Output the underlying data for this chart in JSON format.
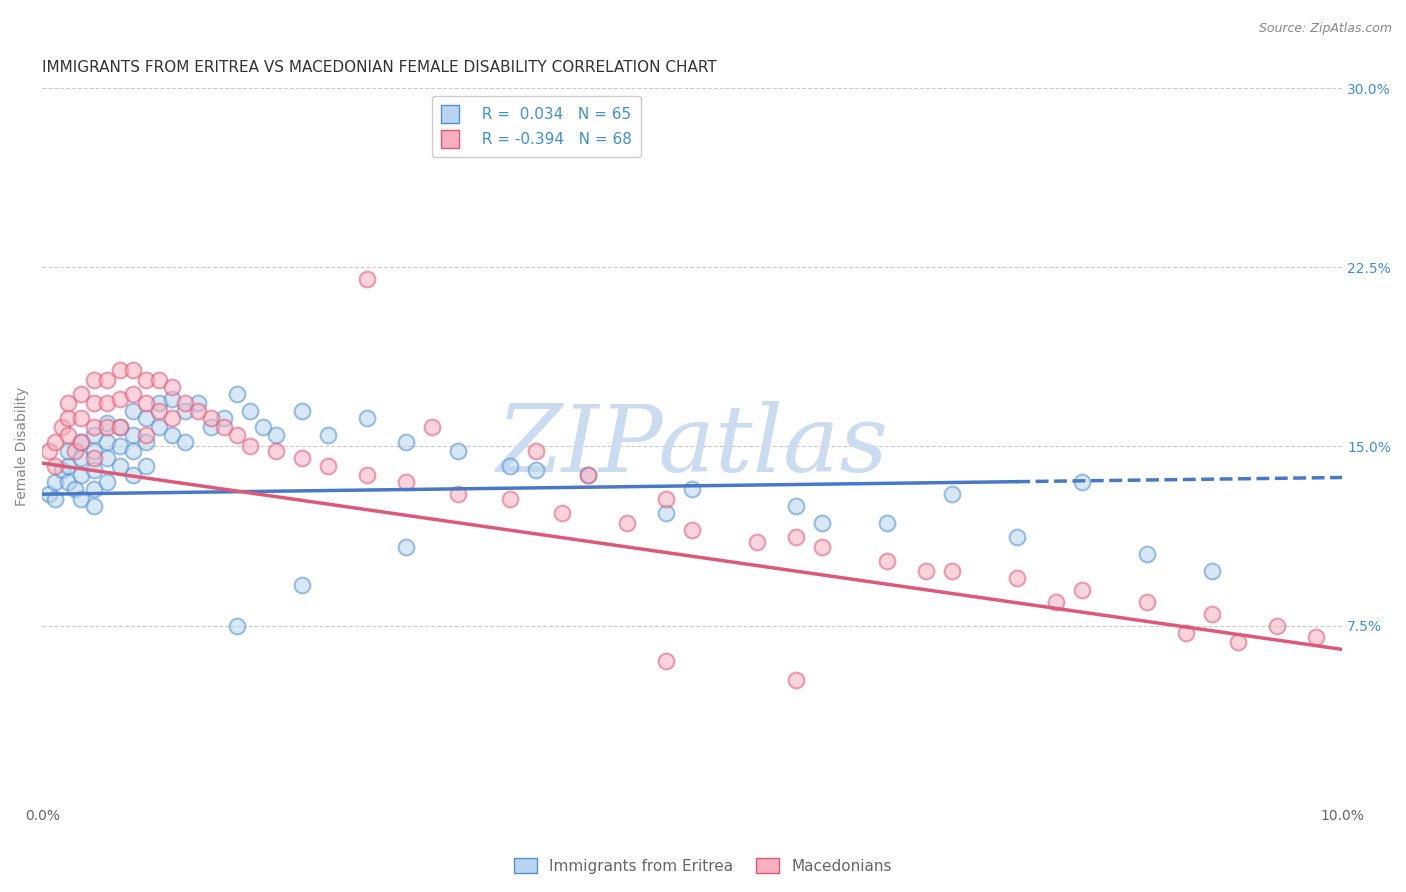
{
  "title": "IMMIGRANTS FROM ERITREA VS MACEDONIAN FEMALE DISABILITY CORRELATION CHART",
  "source": "Source: ZipAtlas.com",
  "ylabel": "Female Disability",
  "xlim": [
    0.0,
    0.1
  ],
  "ylim": [
    0.0,
    0.3
  ],
  "ytick_positions": [
    0.075,
    0.15,
    0.225,
    0.3
  ],
  "ytick_labels": [
    "7.5%",
    "15.0%",
    "22.5%",
    "30.0%"
  ],
  "xtick_positions": [
    0.0,
    0.1
  ],
  "xtick_labels": [
    "0.0%",
    "10.0%"
  ],
  "legend_r_eritrea": "R =  0.034",
  "legend_n_eritrea": "N = 65",
  "legend_r_macedonian": "R = -0.394",
  "legend_n_macedonian": "N = 68",
  "color_eritrea_fill": "#b8d4f0",
  "color_eritrea_edge": "#5090d0",
  "color_macedonian_fill": "#f8b0c0",
  "color_macedonian_edge": "#e05878",
  "color_eritrea_line": "#4878c8",
  "color_macedonian_line": "#e05878",
  "color_axis_text": "#4090d0",
  "color_label": "#888888",
  "watermark_color": "#ccdcf0",
  "background_color": "#ffffff",
  "grid_color": "#cccccc",
  "eritrea_line_x": [
    0.0,
    0.1
  ],
  "eritrea_line_y": [
    0.13,
    0.137
  ],
  "macedonian_line_x": [
    0.0,
    0.1
  ],
  "macedonian_line_y": [
    0.143,
    0.065
  ],
  "eritrea_scatter_x": [
    0.0005,
    0.001,
    0.001,
    0.0015,
    0.002,
    0.002,
    0.002,
    0.0025,
    0.003,
    0.003,
    0.003,
    0.003,
    0.004,
    0.004,
    0.004,
    0.004,
    0.004,
    0.005,
    0.005,
    0.005,
    0.005,
    0.006,
    0.006,
    0.006,
    0.007,
    0.007,
    0.007,
    0.007,
    0.008,
    0.008,
    0.008,
    0.009,
    0.009,
    0.01,
    0.01,
    0.011,
    0.011,
    0.012,
    0.013,
    0.014,
    0.015,
    0.016,
    0.017,
    0.018,
    0.02,
    0.022,
    0.025,
    0.028,
    0.032,
    0.036,
    0.042,
    0.05,
    0.058,
    0.065,
    0.075,
    0.085,
    0.09,
    0.038,
    0.028,
    0.02,
    0.015,
    0.06,
    0.07,
    0.08,
    0.048
  ],
  "eritrea_scatter_y": [
    0.13,
    0.135,
    0.128,
    0.14,
    0.142,
    0.135,
    0.148,
    0.132,
    0.152,
    0.145,
    0.138,
    0.128,
    0.155,
    0.148,
    0.14,
    0.132,
    0.125,
    0.16,
    0.152,
    0.145,
    0.135,
    0.158,
    0.15,
    0.142,
    0.165,
    0.155,
    0.148,
    0.138,
    0.162,
    0.152,
    0.142,
    0.168,
    0.158,
    0.17,
    0.155,
    0.165,
    0.152,
    0.168,
    0.158,
    0.162,
    0.172,
    0.165,
    0.158,
    0.155,
    0.165,
    0.155,
    0.162,
    0.152,
    0.148,
    0.142,
    0.138,
    0.132,
    0.125,
    0.118,
    0.112,
    0.105,
    0.098,
    0.14,
    0.108,
    0.092,
    0.075,
    0.118,
    0.13,
    0.135,
    0.122
  ],
  "macedonian_scatter_x": [
    0.0005,
    0.001,
    0.001,
    0.0015,
    0.002,
    0.002,
    0.002,
    0.0025,
    0.003,
    0.003,
    0.003,
    0.004,
    0.004,
    0.004,
    0.004,
    0.005,
    0.005,
    0.005,
    0.006,
    0.006,
    0.006,
    0.007,
    0.007,
    0.008,
    0.008,
    0.008,
    0.009,
    0.009,
    0.01,
    0.01,
    0.011,
    0.012,
    0.013,
    0.014,
    0.015,
    0.016,
    0.018,
    0.02,
    0.022,
    0.025,
    0.028,
    0.032,
    0.036,
    0.04,
    0.045,
    0.05,
    0.055,
    0.06,
    0.065,
    0.07,
    0.075,
    0.08,
    0.085,
    0.09,
    0.095,
    0.098,
    0.025,
    0.03,
    0.038,
    0.042,
    0.048,
    0.058,
    0.068,
    0.078,
    0.088,
    0.092,
    0.048,
    0.058
  ],
  "macedonian_scatter_y": [
    0.148,
    0.152,
    0.142,
    0.158,
    0.162,
    0.155,
    0.168,
    0.148,
    0.172,
    0.162,
    0.152,
    0.178,
    0.168,
    0.158,
    0.145,
    0.178,
    0.168,
    0.158,
    0.182,
    0.17,
    0.158,
    0.182,
    0.172,
    0.178,
    0.168,
    0.155,
    0.178,
    0.165,
    0.175,
    0.162,
    0.168,
    0.165,
    0.162,
    0.158,
    0.155,
    0.15,
    0.148,
    0.145,
    0.142,
    0.138,
    0.135,
    0.13,
    0.128,
    0.122,
    0.118,
    0.115,
    0.11,
    0.108,
    0.102,
    0.098,
    0.095,
    0.09,
    0.085,
    0.08,
    0.075,
    0.07,
    0.22,
    0.158,
    0.148,
    0.138,
    0.128,
    0.112,
    0.098,
    0.085,
    0.072,
    0.068,
    0.06,
    0.052
  ],
  "title_fontsize": 11,
  "tick_fontsize": 10,
  "legend_fontsize": 11,
  "ylabel_fontsize": 10
}
